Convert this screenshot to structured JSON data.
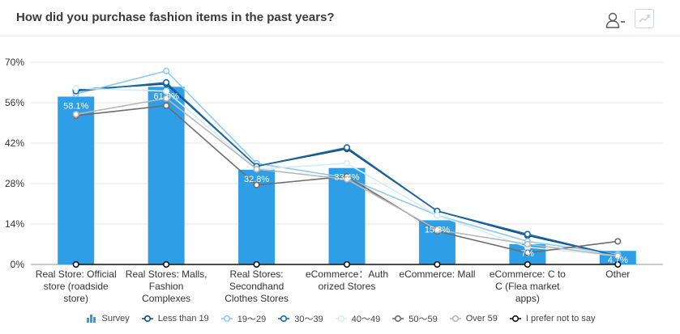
{
  "title": "How did you purchase fashion items in the past years?",
  "icons": {
    "user": "user-icon",
    "trend": "trend-chart-icon"
  },
  "chart_data": {
    "type": "bar",
    "title": "",
    "xlabel": "",
    "ylabel": "",
    "ylim": [
      0,
      70
    ],
    "yticks": [
      "0%",
      "14%",
      "28%",
      "42%",
      "56%",
      "70%"
    ],
    "ytick_values": [
      0,
      14,
      28,
      42,
      56,
      70
    ],
    "grid": true,
    "legend_position": "bottom",
    "categories": [
      [
        "Real Store: Official",
        "store (roadside",
        "store)"
      ],
      [
        "Real Stores: Malls,",
        "Fashion",
        "Complexes"
      ],
      [
        "Real Stores:",
        "Secondhand",
        "Clothes Stores"
      ],
      [
        "eCommerce：Auth",
        "orized Stores"
      ],
      [
        "eCommerce: Mall"
      ],
      [
        "eCommerce: C to",
        "C (Flea market",
        "apps)"
      ],
      [
        "Other"
      ]
    ],
    "bars": {
      "name": "Survey",
      "color": "#2e9fe6",
      "values": [
        58.1,
        61.5,
        32.8,
        33.4,
        15.3,
        7.0,
        4.7
      ],
      "labels": [
        "58.1%",
        "61.5%",
        "32.8%",
        "33.4%",
        "15.3%",
        "7%",
        "4.7%"
      ]
    },
    "series": [
      {
        "name": "Less than 19",
        "color": "#0d4d7e",
        "values": [
          60.5,
          62.5,
          34,
          40,
          18.5,
          10,
          3
        ]
      },
      {
        "name": "19〜29",
        "color": "#8ccaf0",
        "values": [
          59,
          67,
          35,
          30,
          17,
          8,
          3.5
        ]
      },
      {
        "name": "30〜39",
        "color": "#1869a8",
        "values": [
          60,
          63,
          34,
          40.5,
          18.5,
          10.5,
          3
        ]
      },
      {
        "name": "40〜49",
        "color": "#d4ecf9",
        "values": [
          61,
          60,
          33,
          35,
          17,
          6,
          3
        ]
      },
      {
        "name": "50〜59",
        "color": "#6d6d6d",
        "values": [
          51.5,
          55,
          27.5,
          30.5,
          11.5,
          4,
          8
        ]
      },
      {
        "name": "Over 59",
        "color": "#b8b8b8",
        "values": [
          52,
          57.5,
          33,
          29.5,
          12,
          7,
          3
        ]
      },
      {
        "name": "I prefer not to say",
        "color": "#111111",
        "values": [
          0,
          0,
          0,
          0,
          0,
          0,
          0
        ]
      }
    ]
  }
}
